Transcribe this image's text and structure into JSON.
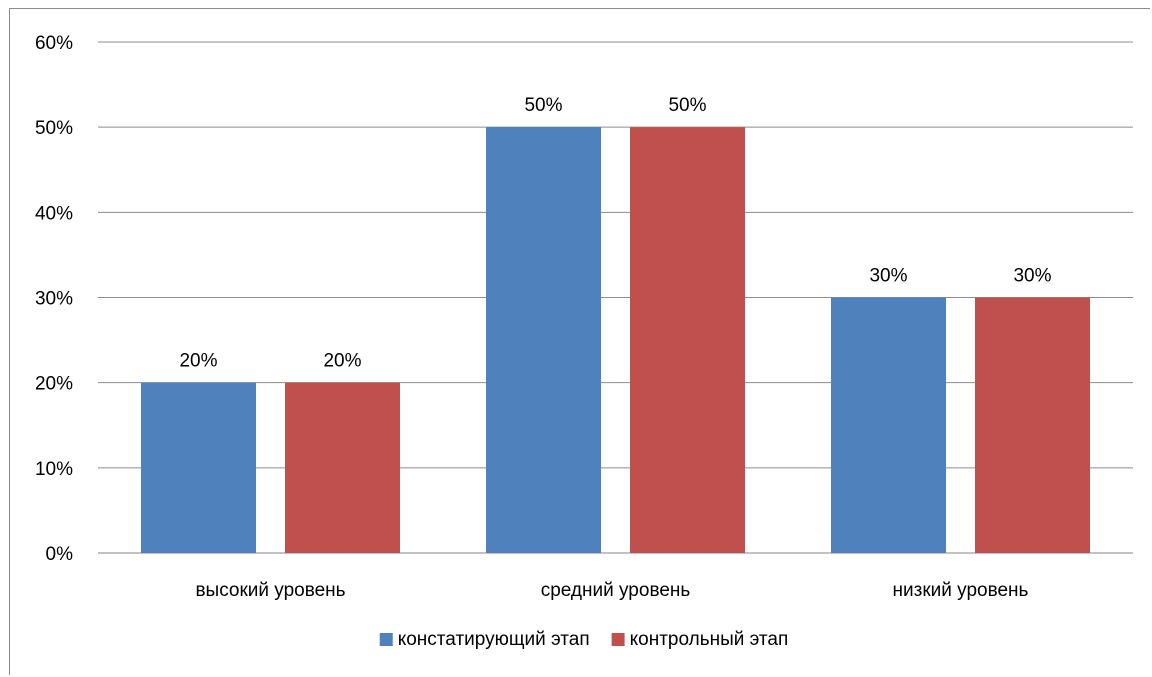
{
  "chart_data": {
    "type": "bar",
    "categories": [
      "высокий уровень",
      "средний уровень",
      "низкий уровень"
    ],
    "series": [
      {
        "name": "констатирующий этап",
        "values": [
          20,
          50,
          30
        ],
        "color": "#4f81bd"
      },
      {
        "name": "контрольный этап",
        "values": [
          20,
          50,
          30
        ],
        "color": "#c0504d"
      }
    ],
    "data_labels": [
      [
        "20%",
        "50%",
        "30%"
      ],
      [
        "20%",
        "50%",
        "30%"
      ]
    ],
    "y_ticks": [
      "0%",
      "10%",
      "20%",
      "30%",
      "40%",
      "50%",
      "60%"
    ],
    "ylim": [
      0,
      60
    ],
    "grid": true,
    "legend_position": "bottom",
    "title": "",
    "xlabel": "",
    "ylabel": ""
  }
}
